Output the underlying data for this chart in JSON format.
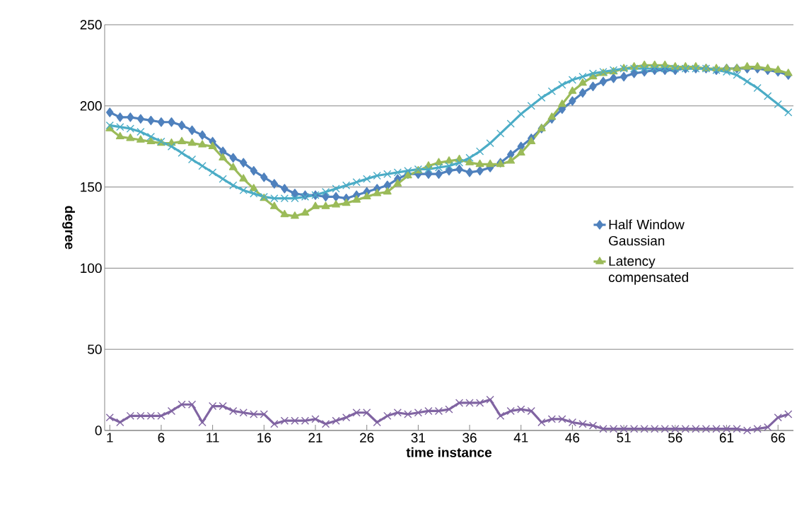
{
  "chart_data": {
    "type": "line",
    "xlabel": "time instance",
    "ylabel": "degree",
    "categories": [
      "1",
      null,
      null,
      null,
      null,
      "6",
      null,
      null,
      null,
      null,
      "11",
      null,
      null,
      null,
      null,
      "16",
      null,
      null,
      null,
      null,
      "21",
      null,
      null,
      null,
      null,
      "26",
      null,
      null,
      null,
      null,
      "31",
      null,
      null,
      null,
      null,
      "36",
      null,
      null,
      null,
      null,
      "41",
      null,
      null,
      null,
      null,
      "46",
      null,
      null,
      null,
      null,
      "51",
      null,
      null,
      null,
      null,
      "56",
      null,
      null,
      null,
      null,
      "61",
      null,
      null,
      null,
      null,
      "66",
      null
    ],
    "ylim": [
      0,
      250
    ],
    "yticks": [
      0,
      50,
      100,
      150,
      200,
      250
    ],
    "grid": "y",
    "legend": "right",
    "series": [
      {
        "name": "Half Window Gaussian",
        "color": "#4f81bd",
        "marker": "diamond",
        "values": [
          196,
          193,
          193,
          192,
          191,
          190,
          190,
          188,
          185,
          182,
          178,
          172,
          168,
          165,
          160,
          156,
          152,
          149,
          146,
          145,
          145,
          144,
          144,
          143,
          145,
          147,
          149,
          151,
          155,
          158,
          158,
          158,
          158,
          160,
          161,
          159,
          160,
          162,
          165,
          170,
          175,
          180,
          186,
          192,
          198,
          203,
          208,
          212,
          215,
          217,
          218,
          220,
          221,
          222,
          222,
          222,
          223,
          223,
          223,
          222,
          223,
          223,
          223,
          223,
          222,
          221,
          219
        ]
      },
      {
        "name": "Latency compensated",
        "color": "#9bbb59",
        "marker": "triangle",
        "values": [
          186,
          181,
          180,
          179,
          178,
          177,
          177,
          178,
          177,
          176,
          175,
          168,
          162,
          155,
          149,
          143,
          138,
          133,
          132,
          134,
          138,
          138,
          139,
          140,
          142,
          144,
          146,
          147,
          152,
          157,
          160,
          163,
          165,
          166,
          167,
          165,
          164,
          164,
          164,
          166,
          171,
          178,
          186,
          193,
          201,
          209,
          214,
          218,
          220,
          221,
          223,
          224,
          225,
          225,
          225,
          224,
          224,
          224,
          223,
          223,
          223,
          223,
          224,
          224,
          223,
          222,
          220
        ]
      },
      {
        "color": "#4bacc6",
        "marker": "cross",
        "values": [
          188,
          187,
          186,
          184,
          181,
          178,
          175,
          171,
          167,
          163,
          159,
          155,
          151,
          148,
          146,
          144,
          143,
          143,
          143,
          144,
          145,
          147,
          149,
          151,
          153,
          155,
          157,
          158,
          159,
          160,
          161,
          161,
          162,
          163,
          165,
          168,
          172,
          177,
          183,
          189,
          195,
          200,
          205,
          209,
          213,
          216,
          218,
          220,
          221,
          222,
          223,
          223,
          223,
          223,
          223,
          223,
          223,
          223,
          223,
          222,
          221,
          219,
          215,
          211,
          206,
          201,
          196
        ]
      },
      {
        "color": "#8064a2",
        "marker": "cross",
        "values": [
          8,
          5,
          9,
          9,
          9,
          9,
          12,
          16,
          16,
          5,
          15,
          15,
          12,
          11,
          10,
          10,
          4,
          6,
          6,
          6,
          7,
          4,
          6,
          8,
          11,
          11,
          5,
          9,
          11,
          10,
          11,
          12,
          12,
          13,
          17,
          17,
          17,
          19,
          9,
          12,
          13,
          12,
          5,
          7,
          7,
          5,
          4,
          3,
          1,
          1,
          1,
          1,
          1,
          1,
          1,
          1,
          1,
          1,
          1,
          1,
          1,
          1,
          0,
          1,
          2,
          8,
          10
        ]
      }
    ]
  }
}
